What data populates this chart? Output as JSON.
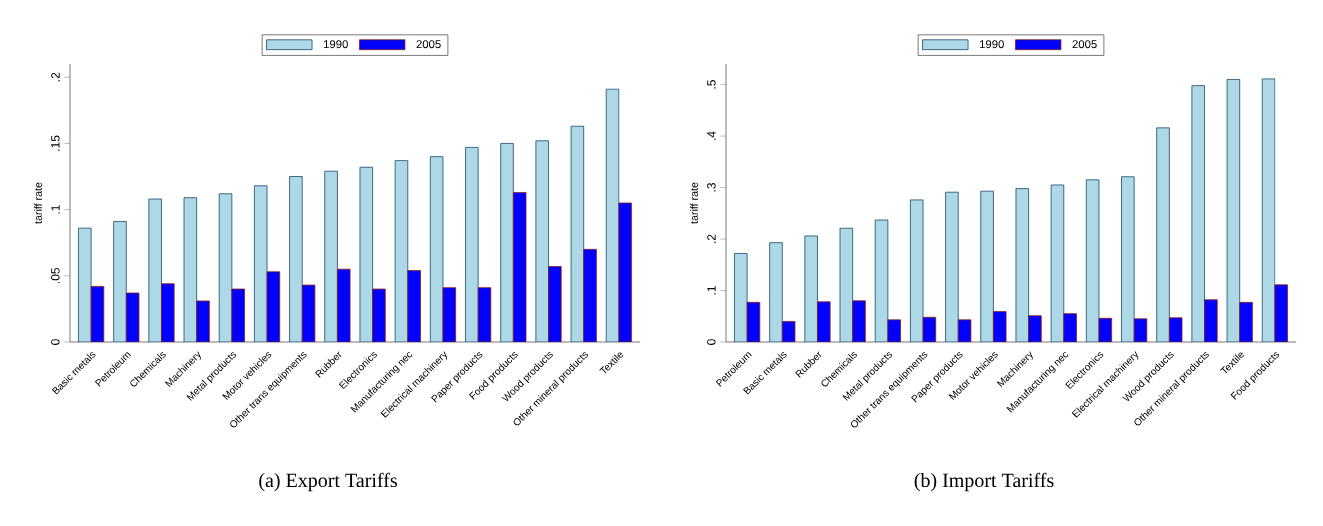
{
  "chart_data": [
    {
      "type": "bar",
      "title": "(a) Export Tariffs",
      "ylabel": "tariff rate",
      "legend": "top",
      "grid": false,
      "categories": [
        "Basic metals",
        "Petroleum",
        "Chemicals",
        "Machinery",
        "Metal products",
        "Motor vehicles",
        "Other trans equipments",
        "Rubber",
        "Electronics",
        "Manufacturing nec",
        "Electrical machinery",
        "Paper products",
        "Food products",
        "Wood products",
        "Other mineral products",
        "Textile"
      ],
      "series": [
        {
          "name": "1990",
          "color": "#add8e6",
          "values": [
            0.086,
            0.091,
            0.108,
            0.109,
            0.112,
            0.118,
            0.125,
            0.129,
            0.132,
            0.137,
            0.14,
            0.147,
            0.15,
            0.152,
            0.163,
            0.191
          ]
        },
        {
          "name": "2005",
          "color": "#0000ff",
          "values": [
            0.042,
            0.037,
            0.044,
            0.031,
            0.04,
            0.053,
            0.043,
            0.055,
            0.04,
            0.054,
            0.041,
            0.041,
            0.113,
            0.057,
            0.07,
            0.105
          ]
        }
      ],
      "ylim": [
        0,
        0.21
      ],
      "yticks": [
        0,
        {
          "value": 0.05,
          "label": ".05"
        },
        {
          "value": 0.1,
          "label": ".1"
        },
        {
          "value": 0.15,
          "label": ".15"
        },
        {
          "value": 0.2,
          "label": ".2"
        }
      ]
    },
    {
      "type": "bar",
      "title": "(b) Import Tariffs",
      "ylabel": "tariff rate",
      "legend": "top",
      "grid": false,
      "categories": [
        "Petroleum",
        "Basic metals",
        "Rubber",
        "Chemicals",
        "Metal products",
        "Other trans equipments",
        "Paper products",
        "Motor vehicles",
        "Machinery",
        "Manufacturing nec",
        "Electronics",
        "Electrical machinery",
        "Wood products",
        "Other mineral products",
        "Textile",
        "Food products"
      ],
      "series": [
        {
          "name": "1990",
          "color": "#add8e6",
          "values": [
            0.172,
            0.193,
            0.206,
            0.221,
            0.237,
            0.276,
            0.291,
            0.293,
            0.298,
            0.305,
            0.315,
            0.321,
            0.416,
            0.498,
            0.51,
            0.511
          ]
        },
        {
          "name": "2005",
          "color": "#0000ff",
          "values": [
            0.077,
            0.04,
            0.078,
            0.08,
            0.043,
            0.048,
            0.043,
            0.059,
            0.051,
            0.055,
            0.046,
            0.045,
            0.047,
            0.082,
            0.077,
            0.111
          ]
        }
      ],
      "ylim": [
        0,
        0.54
      ],
      "yticks": [
        0,
        {
          "value": 0.1,
          "label": ".1"
        },
        {
          "value": 0.2,
          "label": ".2"
        },
        {
          "value": 0.3,
          "label": ".3"
        },
        {
          "value": 0.4,
          "label": ".4"
        },
        {
          "value": 0.5,
          "label": ".5"
        }
      ]
    }
  ]
}
